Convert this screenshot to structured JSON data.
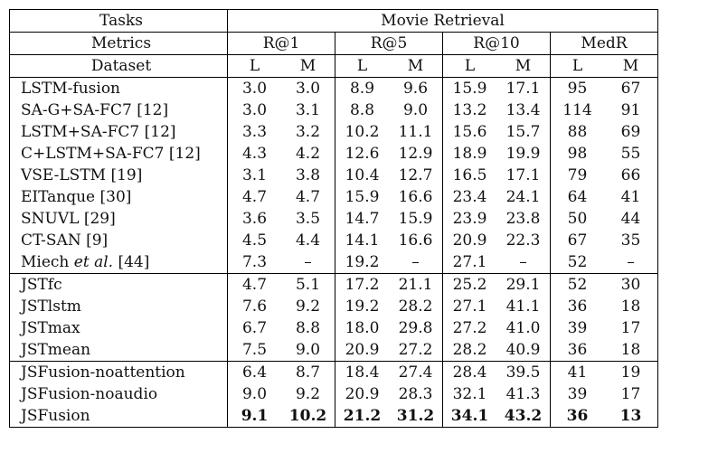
{
  "header": {
    "tasks_label": "Tasks",
    "task_name": "Movie Retrieval",
    "metrics_label": "Metrics",
    "metrics": [
      "R@1",
      "R@5",
      "R@10",
      "MedR"
    ],
    "dataset_label": "Dataset",
    "sub_cols": [
      "L",
      "M",
      "L",
      "M",
      "L",
      "M",
      "L",
      "M"
    ]
  },
  "groups": [
    {
      "rows": [
        {
          "name": "LSTM-fusion",
          "cite": "",
          "values": [
            "3.0",
            "3.0",
            "8.9",
            "9.6",
            "15.9",
            "17.1",
            "95",
            "67"
          ]
        },
        {
          "name": "SA-G+SA-FC7",
          "cite": "[12]",
          "values": [
            "3.0",
            "3.1",
            "8.8",
            "9.0",
            "13.2",
            "13.4",
            "114",
            "91"
          ]
        },
        {
          "name": "LSTM+SA-FC7",
          "cite": "[12]",
          "values": [
            "3.3",
            "3.2",
            "10.2",
            "11.1",
            "15.6",
            "15.7",
            "88",
            "69"
          ]
        },
        {
          "name": "C+LSTM+SA-FC7",
          "cite": "[12]",
          "values": [
            "4.3",
            "4.2",
            "12.6",
            "12.9",
            "18.9",
            "19.9",
            "98",
            "55"
          ]
        },
        {
          "name": "VSE-LSTM",
          "cite": "[19]",
          "values": [
            "3.1",
            "3.8",
            "10.4",
            "12.7",
            "16.5",
            "17.1",
            "79",
            "66"
          ]
        },
        {
          "name": "EITanque",
          "cite": "[30]",
          "values": [
            "4.7",
            "4.7",
            "15.9",
            "16.6",
            "23.4",
            "24.1",
            "64",
            "41"
          ]
        },
        {
          "name": "SNUVL",
          "cite": "[29]",
          "values": [
            "3.6",
            "3.5",
            "14.7",
            "15.9",
            "23.9",
            "23.8",
            "50",
            "44"
          ]
        },
        {
          "name": "CT-SAN",
          "cite": "[9]",
          "values": [
            "4.5",
            "4.4",
            "14.1",
            "16.6",
            "20.9",
            "22.3",
            "67",
            "35"
          ]
        },
        {
          "name": "Miech",
          "italic": "et al.",
          "cite": "[44]",
          "values": [
            "7.3",
            "–",
            "19.2",
            "–",
            "27.1",
            "–",
            "52",
            "–"
          ]
        }
      ]
    },
    {
      "rows": [
        {
          "name": "JSTfc",
          "cite": "",
          "values": [
            "4.7",
            "5.1",
            "17.2",
            "21.1",
            "25.2",
            "29.1",
            "52",
            "30"
          ]
        },
        {
          "name": "JSTlstm",
          "cite": "",
          "values": [
            "7.6",
            "9.2",
            "19.2",
            "28.2",
            "27.1",
            "41.1",
            "36",
            "18"
          ]
        },
        {
          "name": "JSTmax",
          "cite": "",
          "values": [
            "6.7",
            "8.8",
            "18.0",
            "29.8",
            "27.2",
            "41.0",
            "39",
            "17"
          ]
        },
        {
          "name": "JSTmean",
          "cite": "",
          "values": [
            "7.5",
            "9.0",
            "20.9",
            "27.2",
            "28.2",
            "40.9",
            "36",
            "18"
          ]
        }
      ]
    },
    {
      "rows": [
        {
          "name": "JSFusion-noattention",
          "cite": "",
          "values": [
            "6.4",
            "8.7",
            "18.4",
            "27.4",
            "28.4",
            "39.5",
            "41",
            "19"
          ]
        },
        {
          "name": "JSFusion-noaudio",
          "cite": "",
          "values": [
            "9.0",
            "9.2",
            "20.9",
            "28.3",
            "32.1",
            "41.3",
            "39",
            "17"
          ]
        },
        {
          "name": "JSFusion",
          "cite": "",
          "bold": true,
          "values": [
            "9.1",
            "10.2",
            "21.2",
            "31.2",
            "34.1",
            "43.2",
            "36",
            "13"
          ]
        }
      ]
    }
  ]
}
